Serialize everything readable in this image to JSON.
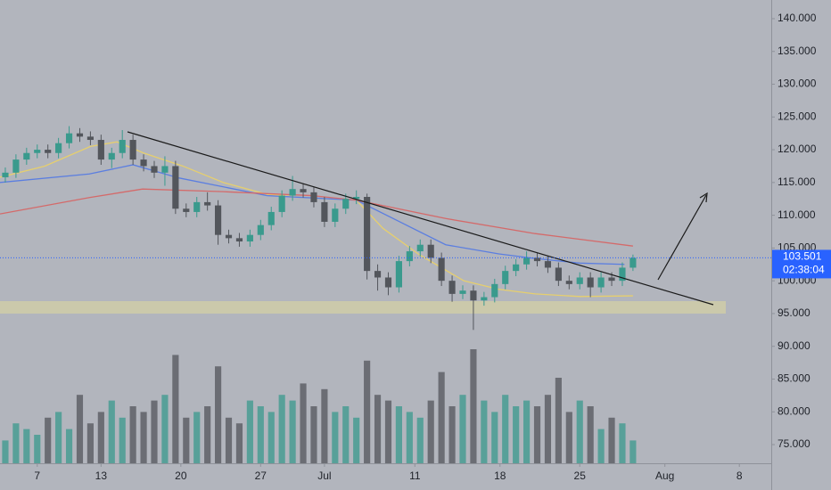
{
  "chart_data": {
    "type": "candlestick",
    "xlim": [
      -0.5,
      72
    ],
    "ylim": [
      72.15,
      142.85
    ],
    "xticks": [
      {
        "value": 3,
        "label": "7"
      },
      {
        "value": 9,
        "label": "13"
      },
      {
        "value": 16.5,
        "label": "20"
      },
      {
        "value": 24,
        "label": "27"
      },
      {
        "value": 30,
        "label": "Jul"
      },
      {
        "value": 38.5,
        "label": "11"
      },
      {
        "value": 46.5,
        "label": "18"
      },
      {
        "value": 54,
        "label": "25"
      },
      {
        "value": 62,
        "label": "Aug"
      },
      {
        "value": 69,
        "label": "8"
      }
    ],
    "yticks": [
      {
        "value": 140,
        "label": "140.000"
      },
      {
        "value": 135,
        "label": "135.000"
      },
      {
        "value": 130,
        "label": "130.000"
      },
      {
        "value": 125,
        "label": "125.000"
      },
      {
        "value": 120,
        "label": "120.000"
      },
      {
        "value": 115,
        "label": "115.000"
      },
      {
        "value": 110,
        "label": "110.000"
      },
      {
        "value": 105,
        "label": "105.000"
      },
      {
        "value": 100,
        "label": "100.000"
      },
      {
        "value": 95,
        "label": "95.000"
      },
      {
        "value": 90,
        "label": "90.000"
      },
      {
        "value": 85,
        "label": "85.000"
      },
      {
        "value": 80,
        "label": "80.000"
      },
      {
        "value": 75,
        "label": "75.000"
      }
    ],
    "up_color": "#3a9a8d",
    "down_color": "#53565c",
    "open": [
      115.8,
      116.5,
      118.5,
      119.5,
      120,
      119.5,
      121,
      122.5,
      122,
      121.5,
      118.5,
      119.5,
      121.5,
      118.5,
      117.5,
      116.5,
      117.5,
      111,
      110.5,
      112,
      111.5,
      107,
      106.5,
      106,
      107,
      108.5,
      110.5,
      113,
      114,
      113.5,
      112,
      109,
      111,
      112.5,
      112.8,
      101.5,
      100.5,
      99,
      103,
      104.5,
      105.5,
      103.5,
      100,
      98,
      98.5,
      97,
      97.5,
      99.5,
      101.5,
      102.5,
      103.5,
      103,
      102,
      100,
      99.5,
      100.5,
      99,
      100.5,
      100,
      102
    ],
    "high": [
      117.3,
      119.3,
      120.3,
      120.8,
      120.8,
      121.8,
      123.6,
      123.3,
      122.8,
      122.3,
      120.3,
      123,
      122.3,
      119.3,
      118.3,
      119,
      118.3,
      111.8,
      112.8,
      113.5,
      112.3,
      107.8,
      107.3,
      107.8,
      109.3,
      111.3,
      113.8,
      116,
      114.8,
      114.3,
      112.8,
      111.8,
      113.3,
      113.8,
      113.3,
      102.5,
      101.3,
      103.8,
      105.3,
      106.3,
      106.3,
      104.3,
      100.8,
      99.3,
      99.3,
      98.3,
      100.3,
      102.3,
      103.3,
      104.5,
      104.3,
      103.8,
      102.8,
      100.8,
      101.3,
      101.3,
      101.3,
      101.3,
      102.8,
      104
    ],
    "low": [
      115,
      115.7,
      117.7,
      118.7,
      118.7,
      118.7,
      120.2,
      121.2,
      120.7,
      117.7,
      117.2,
      118.7,
      117.7,
      116.7,
      115.7,
      114.5,
      110.2,
      109.7,
      109.7,
      110.7,
      105.5,
      105.7,
      105.2,
      105.2,
      106.2,
      107.7,
      109.7,
      112.2,
      112.7,
      111.2,
      108.2,
      108.2,
      110.2,
      111.7,
      100.2,
      98.5,
      97.8,
      98.2,
      102.2,
      103.7,
      102.7,
      99.2,
      96.8,
      97.2,
      92.5,
      96.2,
      96.7,
      98.7,
      100.7,
      101.7,
      102.2,
      101.2,
      99.2,
      98.7,
      98.7,
      97.5,
      98.2,
      99.2,
      99.2,
      101.5
    ],
    "close": [
      116.5,
      118.5,
      119.5,
      120,
      119.5,
      121,
      122.5,
      122,
      121.5,
      118.5,
      119.5,
      121.5,
      118.5,
      117.5,
      116.5,
      117.5,
      111,
      110.5,
      112,
      111.5,
      107,
      106.5,
      106,
      107,
      108.5,
      110.5,
      113,
      114,
      113.5,
      112,
      109,
      111,
      112.5,
      112.8,
      101.5,
      100.5,
      99,
      103,
      104.5,
      105.5,
      103.5,
      100,
      98,
      98.5,
      97,
      97.5,
      99.5,
      101.5,
      102.5,
      103.5,
      103,
      102,
      100,
      99.5,
      100.5,
      99,
      100.5,
      100,
      102,
      103.5
    ],
    "volume": [
      20,
      35,
      30,
      25,
      40,
      45,
      30,
      60,
      35,
      45,
      55,
      40,
      50,
      45,
      55,
      60,
      95,
      40,
      45,
      50,
      85,
      40,
      35,
      55,
      50,
      45,
      60,
      55,
      70,
      50,
      65,
      45,
      50,
      40,
      90,
      60,
      55,
      50,
      45,
      40,
      55,
      80,
      50,
      60,
      100,
      55,
      45,
      60,
      50,
      55,
      50,
      60,
      75,
      45,
      55,
      50,
      30,
      40,
      35,
      20
    ],
    "series": [
      {
        "color": "#e6cf6e",
        "x": [
          -0.5,
          3.7,
          8,
          10.5,
          13,
          16.7,
          20.5,
          24.6,
          28,
          33,
          35.5,
          38.9,
          43.1,
          46.4,
          49.8,
          54,
          59
        ],
        "values": [
          115.8,
          117.5,
          120.5,
          121.2,
          119.5,
          117.5,
          115,
          113.2,
          112.7,
          112.3,
          108,
          104,
          100,
          98.7,
          98,
          97.6,
          97.7
        ]
      },
      {
        "color": "#5b7ee0",
        "x": [
          -0.5,
          7.9,
          12,
          16.3,
          24.6,
          33,
          37.2,
          41.4,
          46.4,
          49.8,
          54,
          58.2
        ],
        "values": [
          115,
          116.3,
          117.7,
          115.7,
          113,
          112.3,
          108.9,
          105.5,
          104.1,
          103.4,
          102.7,
          102.5
        ]
      },
      {
        "color": "#d46a6a",
        "x": [
          -0.5,
          7.9,
          12.9,
          20.5,
          28.8,
          33,
          41.4,
          49.8,
          59
        ],
        "values": [
          110.2,
          112.7,
          114,
          113.6,
          113,
          112.3,
          109.5,
          107.2,
          105.3
        ]
      }
    ],
    "last_price": 103.501,
    "countdown": "02:38:04"
  }
}
